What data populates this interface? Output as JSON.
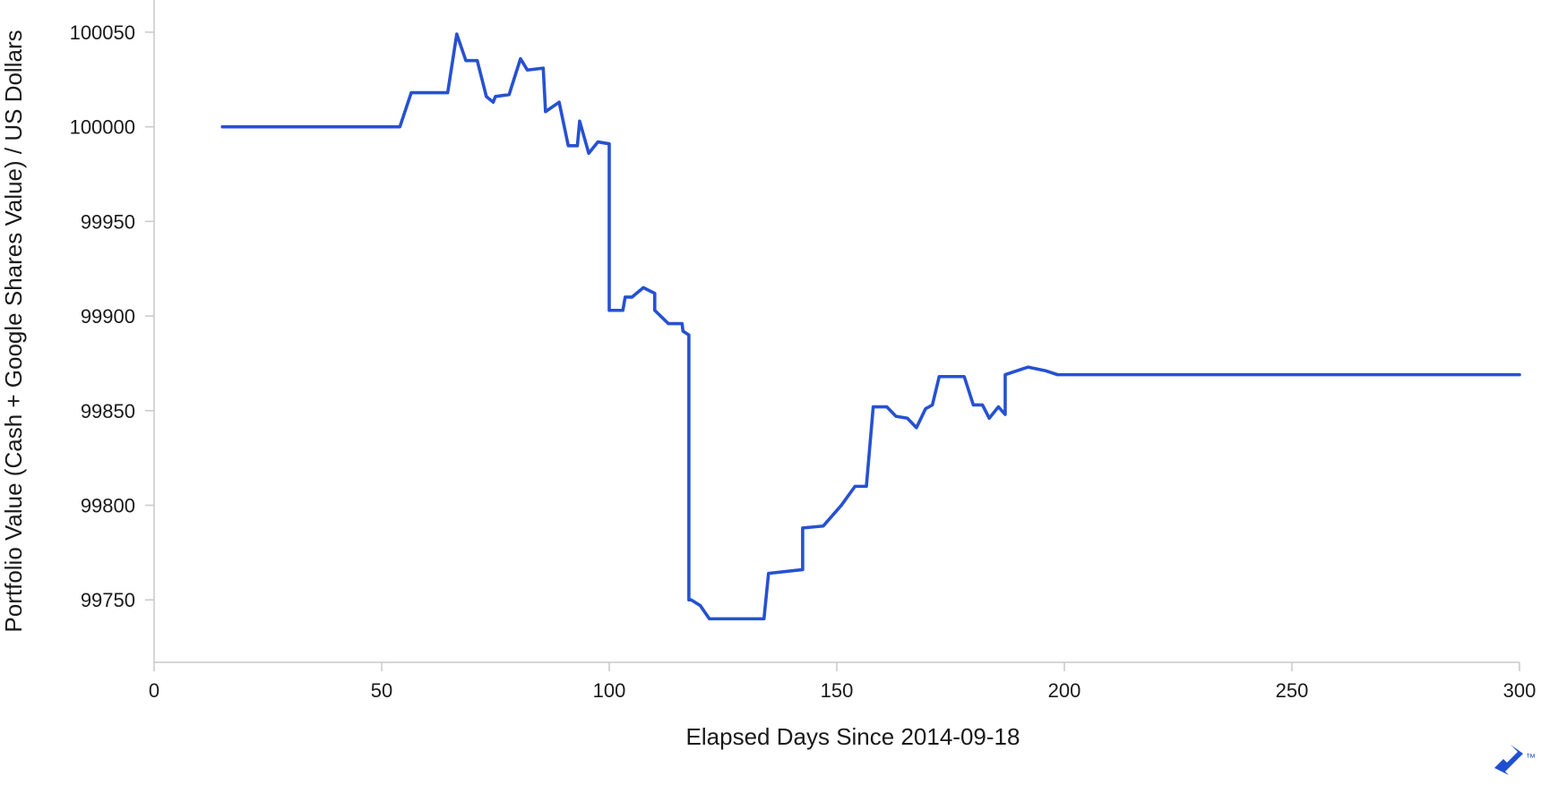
{
  "chart_data": {
    "type": "line",
    "xlabel": "Elapsed Days Since 2014-09-18",
    "ylabel": "Portfolio Value (Cash + Google Shares Value) / US Dollars",
    "xlim": [
      0,
      300
    ],
    "ylim": [
      99717,
      100067
    ],
    "x_ticks": [
      0,
      50,
      100,
      150,
      200,
      250,
      300
    ],
    "y_ticks": [
      99750,
      99800,
      99850,
      99900,
      99950,
      100000,
      100050
    ],
    "grid": false,
    "line_color": "#2651d1",
    "series": [
      {
        "x": [
          15,
          54,
          56.5,
          64.5,
          66.5,
          68.5,
          71,
          73,
          74.5,
          75,
          78,
          80.5,
          82,
          85.5,
          86,
          89,
          91,
          93,
          93.5,
          95.5,
          97.5,
          100,
          100,
          103,
          103.5,
          105,
          107.5,
          110,
          110,
          113,
          116,
          116.2,
          117.5,
          117.5,
          118,
          120,
          122,
          134,
          135,
          142.5,
          142.5,
          147,
          151,
          154,
          156.5,
          158,
          161,
          163,
          165.5,
          167.5,
          169.5,
          171,
          172.5,
          178,
          180,
          182,
          183.5,
          185.5,
          187,
          187,
          192,
          196,
          198.5,
          300
        ],
        "y": [
          100000,
          100000,
          100018,
          100018,
          100049,
          100035,
          100035,
          100016,
          100013,
          100016,
          100017,
          100036,
          100030,
          100031,
          100008,
          100013,
          99990,
          99990,
          100003,
          99986,
          99992,
          99991,
          99903,
          99903,
          99910,
          99910,
          99915,
          99912,
          99903,
          99896,
          99896,
          99892,
          99890,
          99750,
          99750,
          99747,
          99740,
          99740,
          99764,
          99766,
          99788,
          99789,
          99800,
          99810,
          99810,
          99852,
          99852,
          99847,
          99846,
          99841,
          99851,
          99853,
          99868,
          99868,
          99853,
          99853,
          99846,
          99852,
          99848,
          99869,
          99873,
          99871,
          99869,
          99869
        ]
      }
    ]
  }
}
